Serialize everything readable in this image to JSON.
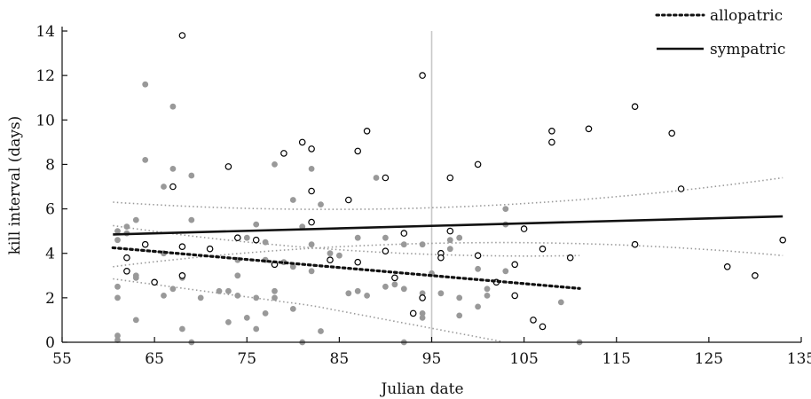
{
  "chart_data": {
    "type": "scatter",
    "xlabel": "Julian date",
    "ylabel": "kill interval (days)",
    "xlim": [
      55,
      135
    ],
    "ylim": [
      0,
      14
    ],
    "xticks": [
      55,
      65,
      75,
      85,
      95,
      105,
      115,
      125,
      135
    ],
    "yticks": [
      0,
      2,
      4,
      6,
      8,
      10,
      12,
      14
    ],
    "grid": false,
    "legend_position": "top-right",
    "reference_line": {
      "x": 95,
      "color": "#c8c8c8"
    },
    "legend": [
      {
        "label": "allopatric",
        "style": "dotted"
      },
      {
        "label": "sympatric",
        "style": "solid"
      }
    ],
    "series": [
      {
        "name": "allopatric",
        "marker": "filled",
        "color": "#999999",
        "points": [
          [
            61,
            0.3
          ],
          [
            61,
            0.1
          ],
          [
            61,
            2.0
          ],
          [
            61,
            2.5
          ],
          [
            61,
            4.6
          ],
          [
            61,
            5.0
          ],
          [
            62,
            5.2
          ],
          [
            62,
            4.9
          ],
          [
            63,
            5.5
          ],
          [
            63,
            3.0
          ],
          [
            63,
            2.9
          ],
          [
            63,
            1.0
          ],
          [
            64,
            11.6
          ],
          [
            64,
            8.2
          ],
          [
            66,
            7.0
          ],
          [
            66,
            4.0
          ],
          [
            66,
            2.1
          ],
          [
            67,
            10.6
          ],
          [
            67,
            7.8
          ],
          [
            67,
            2.4
          ],
          [
            68,
            4.3
          ],
          [
            68,
            3.0
          ],
          [
            68,
            2.9
          ],
          [
            68,
            0.6
          ],
          [
            69,
            7.5
          ],
          [
            69,
            5.5
          ],
          [
            69,
            0.0
          ],
          [
            70,
            2.0
          ],
          [
            72,
            2.3
          ],
          [
            73,
            2.3
          ],
          [
            73,
            0.9
          ],
          [
            74,
            3.7
          ],
          [
            74,
            3.0
          ],
          [
            74,
            2.1
          ],
          [
            75,
            4.7
          ],
          [
            75,
            1.1
          ],
          [
            76,
            5.3
          ],
          [
            76,
            2.0
          ],
          [
            76,
            0.6
          ],
          [
            77,
            4.5
          ],
          [
            77,
            3.7
          ],
          [
            77,
            1.3
          ],
          [
            78,
            8.0
          ],
          [
            78,
            2.3
          ],
          [
            78,
            2.0
          ],
          [
            79,
            3.6
          ],
          [
            80,
            6.4
          ],
          [
            80,
            3.4
          ],
          [
            80,
            1.5
          ],
          [
            81,
            5.2
          ],
          [
            81,
            0.0
          ],
          [
            82,
            7.8
          ],
          [
            82,
            4.4
          ],
          [
            82,
            3.2
          ],
          [
            83,
            6.2
          ],
          [
            83,
            0.5
          ],
          [
            84,
            4.0
          ],
          [
            84,
            3.7
          ],
          [
            85,
            3.9
          ],
          [
            86,
            2.2
          ],
          [
            87,
            4.7
          ],
          [
            87,
            2.3
          ],
          [
            88,
            2.1
          ],
          [
            89,
            7.4
          ],
          [
            90,
            4.7
          ],
          [
            90,
            2.5
          ],
          [
            91,
            2.6
          ],
          [
            92,
            4.4
          ],
          [
            92,
            2.4
          ],
          [
            92,
            0.0
          ],
          [
            94,
            4.4
          ],
          [
            94,
            2.2
          ],
          [
            94,
            1.3
          ],
          [
            94,
            1.1
          ],
          [
            95,
            3.1
          ],
          [
            96,
            2.2
          ],
          [
            97,
            4.6
          ],
          [
            97,
            4.2
          ],
          [
            98,
            4.7
          ],
          [
            98,
            2.0
          ],
          [
            98,
            1.2
          ],
          [
            100,
            1.6
          ],
          [
            100,
            3.3
          ],
          [
            101,
            2.4
          ],
          [
            101,
            2.1
          ],
          [
            102,
            2.7
          ],
          [
            103,
            6.0
          ],
          [
            103,
            5.3
          ],
          [
            103,
            3.2
          ],
          [
            109,
            1.8
          ],
          [
            111,
            0.0
          ]
        ]
      },
      {
        "name": "sympatric",
        "marker": "open",
        "color": "#000000",
        "points": [
          [
            62,
            3.8
          ],
          [
            62,
            3.2
          ],
          [
            64,
            4.4
          ],
          [
            65,
            2.7
          ],
          [
            67,
            7.0
          ],
          [
            68,
            13.8
          ],
          [
            68,
            4.3
          ],
          [
            68,
            3.0
          ],
          [
            71,
            4.2
          ],
          [
            73,
            7.9
          ],
          [
            74,
            4.7
          ],
          [
            76,
            4.6
          ],
          [
            78,
            3.5
          ],
          [
            79,
            8.5
          ],
          [
            81,
            9.0
          ],
          [
            82,
            8.7
          ],
          [
            82,
            6.8
          ],
          [
            82,
            5.4
          ],
          [
            84,
            3.7
          ],
          [
            86,
            6.4
          ],
          [
            87,
            8.6
          ],
          [
            87,
            3.6
          ],
          [
            88,
            9.5
          ],
          [
            90,
            7.4
          ],
          [
            90,
            4.1
          ],
          [
            91,
            2.9
          ],
          [
            92,
            4.9
          ],
          [
            93,
            1.3
          ],
          [
            94,
            12.0
          ],
          [
            94,
            2.0
          ],
          [
            96,
            4.0
          ],
          [
            96,
            3.8
          ],
          [
            97,
            7.4
          ],
          [
            97,
            5.0
          ],
          [
            100,
            8.0
          ],
          [
            100,
            3.9
          ],
          [
            102,
            2.7
          ],
          [
            104,
            3.5
          ],
          [
            104,
            2.1
          ],
          [
            105,
            5.1
          ],
          [
            106,
            1.0
          ],
          [
            107,
            4.2
          ],
          [
            107,
            0.7
          ],
          [
            108,
            9.5
          ],
          [
            108,
            9.0
          ],
          [
            110,
            3.8
          ],
          [
            112,
            9.6
          ],
          [
            117,
            10.6
          ],
          [
            117,
            4.4
          ],
          [
            121,
            9.4
          ],
          [
            122,
            6.9
          ],
          [
            127,
            3.4
          ],
          [
            130,
            3.0
          ],
          [
            133,
            4.6
          ]
        ]
      }
    ],
    "fit_lines": [
      {
        "name": "allopatric",
        "style": "dotted",
        "x": [
          60.5,
          111
        ],
        "y": [
          4.25,
          2.42
        ],
        "ci_upper": {
          "x": [
            60.5,
            82,
            111
          ],
          "y": [
            5.25,
            4.25,
            3.9
          ]
        },
        "ci_lower": {
          "x": [
            60.5,
            82,
            103,
            111
          ],
          "y": [
            2.85,
            1.65,
            0.0,
            -0.6
          ]
        }
      },
      {
        "name": "sympatric",
        "style": "solid",
        "x": [
          60.5,
          133
        ],
        "y": [
          4.85,
          5.66
        ],
        "ci_upper": {
          "x": [
            60.5,
            95,
            133
          ],
          "y": [
            6.3,
            6.05,
            7.4
          ]
        },
        "ci_lower": {
          "x": [
            60.5,
            95,
            133
          ],
          "y": [
            3.4,
            4.45,
            3.9
          ]
        }
      }
    ]
  }
}
